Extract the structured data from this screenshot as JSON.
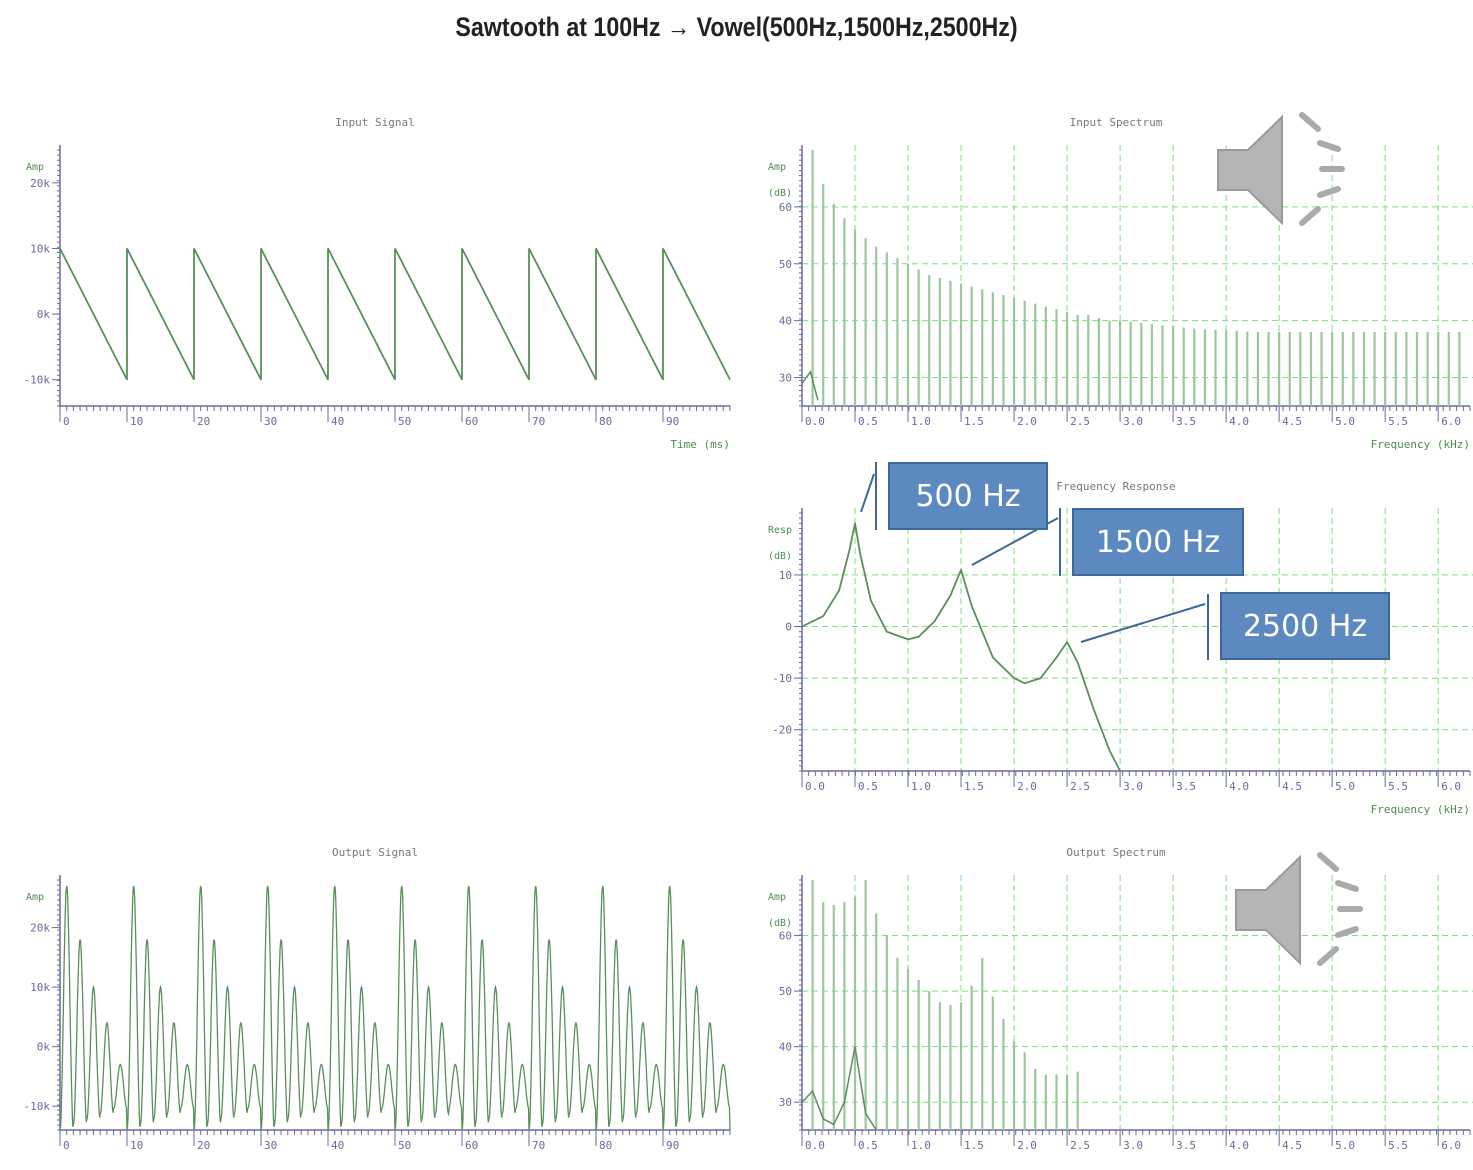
{
  "title": "Sawtooth at 100Hz → Vowel(500Hz,1500Hz,2500Hz)",
  "callouts": {
    "f1": "500 Hz",
    "f2": "1500 Hz",
    "f3": "2500 Hz"
  },
  "chart_data": [
    {
      "id": "input-signal",
      "type": "line",
      "title": "Input Signal",
      "xlabel": "Time (ms)",
      "ylabel": "Amp",
      "xlim": [
        0,
        100
      ],
      "ylim": [
        -14000,
        25000
      ],
      "xticks": [
        "0",
        "10",
        "20",
        "30",
        "40",
        "50",
        "60",
        "70",
        "80",
        "90"
      ],
      "yticks": [
        "20k",
        "10k",
        "0k",
        "-10k"
      ],
      "waveform": "sawtooth",
      "period_ms": 10,
      "peak": 10000,
      "trough": -10000,
      "grid": false
    },
    {
      "id": "input-spectrum",
      "type": "bar",
      "title": "Input Spectrum",
      "xlabel": "Frequency (kHz)",
      "ylabel": "Amp (dB)",
      "xlim": [
        0,
        6.3
      ],
      "ylim": [
        25,
        70
      ],
      "xticks": [
        "0.0",
        "0.5",
        "1.0",
        "1.5",
        "2.0",
        "2.5",
        "3.0",
        "3.5",
        "4.0",
        "4.5",
        "5.0",
        "5.5",
        "6.0"
      ],
      "yticks": [
        "60",
        "50",
        "40",
        "30"
      ],
      "harmonic_spacing_khz": 0.1,
      "harmonic_levels_db": [
        70,
        64,
        60.5,
        58,
        56,
        54.5,
        53,
        52,
        51,
        50,
        49,
        48,
        47.5,
        47,
        46.5,
        46,
        45.5,
        45,
        44.5,
        44,
        43.5,
        43,
        42.5,
        42,
        41.5,
        41,
        41,
        40.5,
        40,
        40,
        39.8,
        39.6,
        39.4,
        39.2,
        39,
        38.8,
        38.6,
        38.5,
        38.4,
        38.3,
        38.2,
        38.1,
        38,
        38,
        38,
        38,
        38,
        38,
        38,
        38,
        38,
        38,
        38,
        38,
        38,
        38,
        38,
        38,
        38,
        38,
        38,
        38,
        38
      ],
      "grid": true
    },
    {
      "id": "frequency-response",
      "type": "line",
      "title": "Frequency Response",
      "xlabel": "Frequency (kHz)",
      "ylabel": "Resp (dB)",
      "xlim": [
        0,
        6.3
      ],
      "ylim": [
        -28,
        22
      ],
      "xticks": [
        "0.0",
        "0.5",
        "1.0",
        "1.5",
        "2.0",
        "2.5",
        "3.0",
        "3.5",
        "4.0",
        "4.5",
        "5.0",
        "5.5",
        "6.0"
      ],
      "yticks": [
        "10",
        "0",
        "-10",
        "-20"
      ],
      "x": [
        0,
        0.2,
        0.35,
        0.45,
        0.5,
        0.55,
        0.65,
        0.8,
        1.0,
        1.1,
        1.25,
        1.4,
        1.5,
        1.6,
        1.8,
        2.0,
        2.1,
        2.25,
        2.4,
        2.5,
        2.6,
        2.75,
        2.9,
        3.0
      ],
      "y": [
        0,
        2,
        7,
        15,
        20,
        14,
        5,
        -1,
        -2.5,
        -2,
        1,
        6,
        11,
        4,
        -6,
        -10,
        -11,
        -10,
        -6,
        -3,
        -7,
        -16,
        -24,
        -30
      ],
      "grid": true
    },
    {
      "id": "output-signal",
      "type": "line",
      "title": "Output Signal",
      "xlabel": "",
      "ylabel": "Amp",
      "xlim": [
        0,
        100
      ],
      "ylim": [
        -14000,
        28000
      ],
      "xticks": [
        "0",
        "10",
        "20",
        "30",
        "40",
        "50",
        "60",
        "70",
        "80",
        "90"
      ],
      "yticks": [
        "20k",
        "10k",
        "0k",
        "-10k"
      ],
      "period_ms": 10,
      "pulse_peaks": [
        27000,
        18000,
        10000,
        4000,
        -3000
      ],
      "grid": false
    },
    {
      "id": "output-spectrum",
      "type": "bar",
      "title": "Output Spectrum",
      "xlabel": "",
      "ylabel": "Amp (dB)",
      "xlim": [
        0,
        6.3
      ],
      "ylim": [
        25,
        70
      ],
      "xticks": [
        "0.0",
        "0.5",
        "1.0",
        "1.5",
        "2.0",
        "2.5",
        "3.0",
        "3.5",
        "4.0",
        "4.5",
        "5.0",
        "5.5",
        "6.0"
      ],
      "yticks": [
        "60",
        "50",
        "40",
        "30"
      ],
      "harmonic_spacing_khz": 0.1,
      "harmonic_levels_db": [
        70,
        66,
        65.5,
        66,
        67,
        76,
        64,
        60,
        56,
        54,
        52,
        50,
        48,
        47.5,
        48,
        51,
        56,
        49,
        45,
        41,
        39,
        36,
        35,
        35,
        35,
        35.5
      ],
      "secondary_x": [
        0,
        0.1,
        0.2,
        0.3,
        0.4,
        0.5,
        0.6,
        0.7
      ],
      "secondary_y": [
        30,
        32,
        27,
        26,
        30,
        40,
        28,
        20
      ],
      "grid": true
    }
  ]
}
